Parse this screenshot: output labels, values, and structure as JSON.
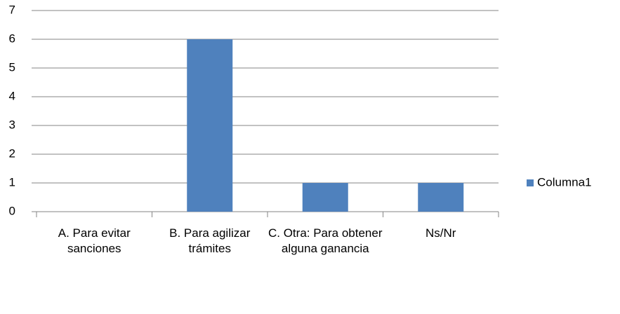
{
  "chart_data": {
    "type": "bar",
    "categories": [
      "A. Para evitar sanciones",
      "B. Para agilizar trámites",
      "C. Otra: Para obtener alguna ganancia",
      "Ns/Nr"
    ],
    "series": [
      {
        "name": "Columna1",
        "color": "#4f81bd",
        "values": [
          0,
          6,
          1,
          1
        ]
      }
    ],
    "ylim": [
      0,
      7
    ],
    "yticks": [
      0,
      1,
      2,
      3,
      4,
      5,
      6,
      7
    ],
    "grid": true,
    "legend": "right"
  }
}
